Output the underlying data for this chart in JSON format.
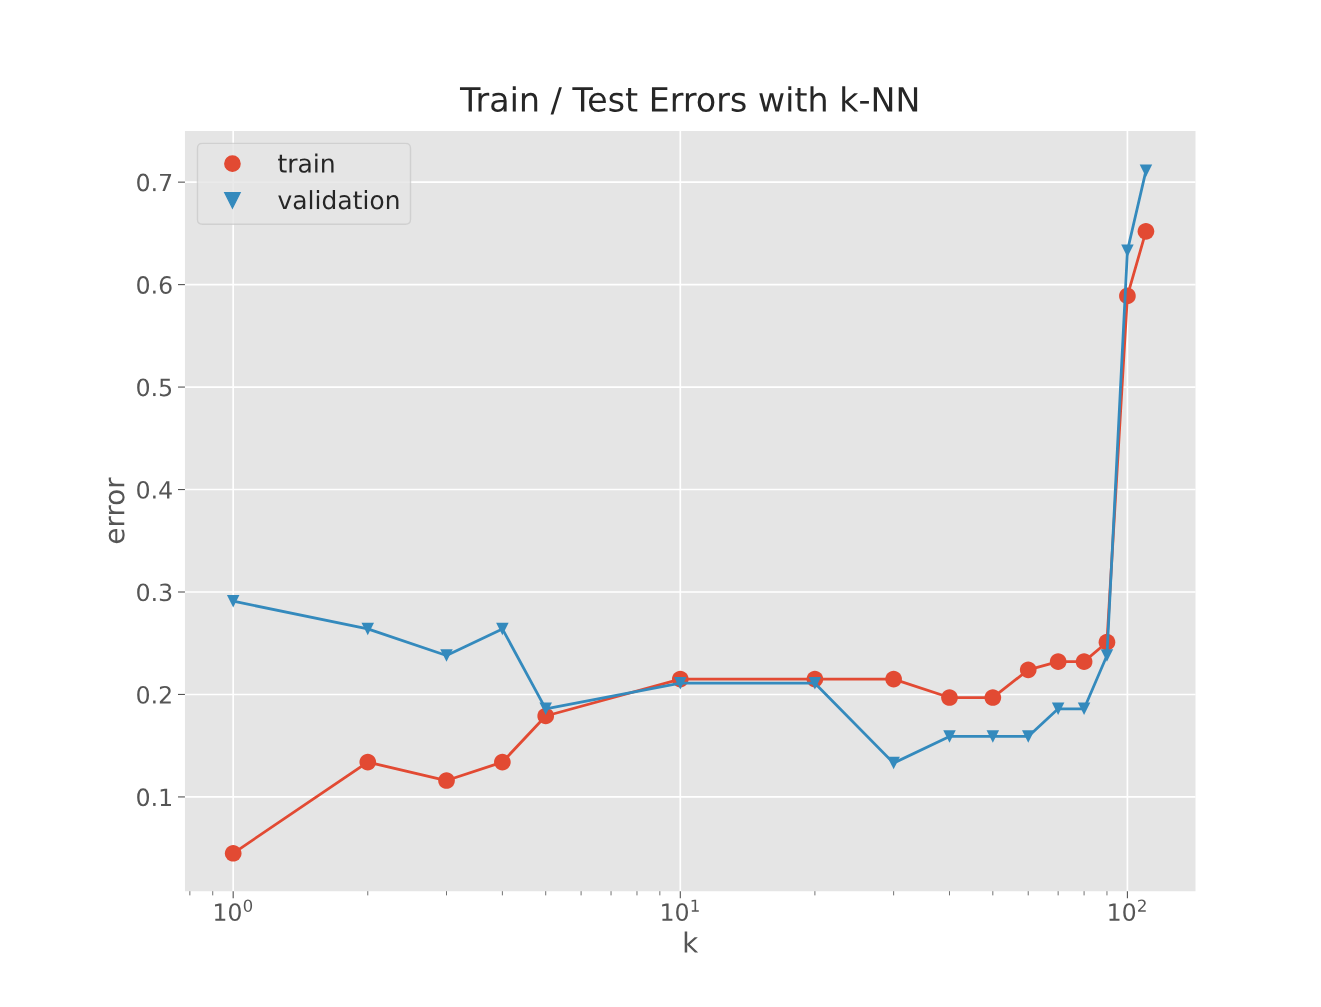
{
  "chart_data": {
    "type": "line",
    "title": "Train / Test Errors with k-NN",
    "xlabel": "k",
    "ylabel": "error",
    "x": [
      1,
      2,
      3,
      4,
      5,
      10,
      20,
      30,
      40,
      50,
      60,
      70,
      80,
      90,
      100,
      110
    ],
    "series": [
      {
        "name": "train",
        "color": "#e24a33",
        "marker": "circle",
        "values": [
          0.045,
          0.134,
          0.116,
          0.134,
          0.179,
          0.215,
          0.215,
          0.215,
          0.197,
          0.197,
          0.224,
          0.232,
          0.232,
          0.251,
          0.589,
          0.652
        ]
      },
      {
        "name": "validation",
        "color": "#348abd",
        "marker": "triangle",
        "values": [
          0.291,
          0.264,
          0.238,
          0.264,
          0.186,
          0.211,
          0.211,
          0.133,
          0.159,
          0.159,
          0.159,
          0.186,
          0.186,
          0.238,
          0.633,
          0.711
        ]
      }
    ],
    "log": "x",
    "xlim": [
      0.78,
      142
    ],
    "xticks": [
      {
        "value": 1,
        "label": "10$^{0}$"
      },
      {
        "value": 10,
        "label": "10$^{1}$"
      },
      {
        "value": 100,
        "label": "10$^{2}$"
      }
    ],
    "ylim": [
      0.008,
      0.75
    ],
    "yticks": [
      0.1,
      0.2,
      0.3,
      0.4,
      0.5,
      0.6,
      0.7
    ],
    "grid": true,
    "legend": "top left",
    "line_style": "solid"
  }
}
